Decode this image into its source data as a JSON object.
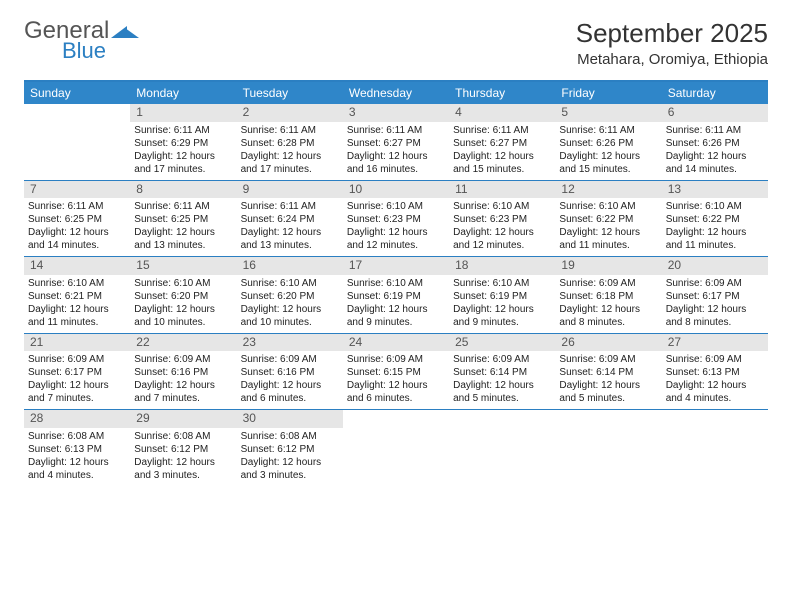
{
  "logo": {
    "general": "General",
    "blue": "Blue"
  },
  "title": "September 2025",
  "subtitle": "Metahara, Oromiya, Ethiopia",
  "colors": {
    "header_bg": "#2f86c9",
    "rule": "#2b7fc2",
    "daynum_bg": "#e6e6e6",
    "text": "#333333"
  },
  "day_headers": [
    "Sunday",
    "Monday",
    "Tuesday",
    "Wednesday",
    "Thursday",
    "Friday",
    "Saturday"
  ],
  "weeks": [
    [
      {
        "n": "",
        "sr": "",
        "ss": "",
        "dl": ""
      },
      {
        "n": "1",
        "sr": "Sunrise: 6:11 AM",
        "ss": "Sunset: 6:29 PM",
        "dl": "Daylight: 12 hours and 17 minutes."
      },
      {
        "n": "2",
        "sr": "Sunrise: 6:11 AM",
        "ss": "Sunset: 6:28 PM",
        "dl": "Daylight: 12 hours and 17 minutes."
      },
      {
        "n": "3",
        "sr": "Sunrise: 6:11 AM",
        "ss": "Sunset: 6:27 PM",
        "dl": "Daylight: 12 hours and 16 minutes."
      },
      {
        "n": "4",
        "sr": "Sunrise: 6:11 AM",
        "ss": "Sunset: 6:27 PM",
        "dl": "Daylight: 12 hours and 15 minutes."
      },
      {
        "n": "5",
        "sr": "Sunrise: 6:11 AM",
        "ss": "Sunset: 6:26 PM",
        "dl": "Daylight: 12 hours and 15 minutes."
      },
      {
        "n": "6",
        "sr": "Sunrise: 6:11 AM",
        "ss": "Sunset: 6:26 PM",
        "dl": "Daylight: 12 hours and 14 minutes."
      }
    ],
    [
      {
        "n": "7",
        "sr": "Sunrise: 6:11 AM",
        "ss": "Sunset: 6:25 PM",
        "dl": "Daylight: 12 hours and 14 minutes."
      },
      {
        "n": "8",
        "sr": "Sunrise: 6:11 AM",
        "ss": "Sunset: 6:25 PM",
        "dl": "Daylight: 12 hours and 13 minutes."
      },
      {
        "n": "9",
        "sr": "Sunrise: 6:11 AM",
        "ss": "Sunset: 6:24 PM",
        "dl": "Daylight: 12 hours and 13 minutes."
      },
      {
        "n": "10",
        "sr": "Sunrise: 6:10 AM",
        "ss": "Sunset: 6:23 PM",
        "dl": "Daylight: 12 hours and 12 minutes."
      },
      {
        "n": "11",
        "sr": "Sunrise: 6:10 AM",
        "ss": "Sunset: 6:23 PM",
        "dl": "Daylight: 12 hours and 12 minutes."
      },
      {
        "n": "12",
        "sr": "Sunrise: 6:10 AM",
        "ss": "Sunset: 6:22 PM",
        "dl": "Daylight: 12 hours and 11 minutes."
      },
      {
        "n": "13",
        "sr": "Sunrise: 6:10 AM",
        "ss": "Sunset: 6:22 PM",
        "dl": "Daylight: 12 hours and 11 minutes."
      }
    ],
    [
      {
        "n": "14",
        "sr": "Sunrise: 6:10 AM",
        "ss": "Sunset: 6:21 PM",
        "dl": "Daylight: 12 hours and 11 minutes."
      },
      {
        "n": "15",
        "sr": "Sunrise: 6:10 AM",
        "ss": "Sunset: 6:20 PM",
        "dl": "Daylight: 12 hours and 10 minutes."
      },
      {
        "n": "16",
        "sr": "Sunrise: 6:10 AM",
        "ss": "Sunset: 6:20 PM",
        "dl": "Daylight: 12 hours and 10 minutes."
      },
      {
        "n": "17",
        "sr": "Sunrise: 6:10 AM",
        "ss": "Sunset: 6:19 PM",
        "dl": "Daylight: 12 hours and 9 minutes."
      },
      {
        "n": "18",
        "sr": "Sunrise: 6:10 AM",
        "ss": "Sunset: 6:19 PM",
        "dl": "Daylight: 12 hours and 9 minutes."
      },
      {
        "n": "19",
        "sr": "Sunrise: 6:09 AM",
        "ss": "Sunset: 6:18 PM",
        "dl": "Daylight: 12 hours and 8 minutes."
      },
      {
        "n": "20",
        "sr": "Sunrise: 6:09 AM",
        "ss": "Sunset: 6:17 PM",
        "dl": "Daylight: 12 hours and 8 minutes."
      }
    ],
    [
      {
        "n": "21",
        "sr": "Sunrise: 6:09 AM",
        "ss": "Sunset: 6:17 PM",
        "dl": "Daylight: 12 hours and 7 minutes."
      },
      {
        "n": "22",
        "sr": "Sunrise: 6:09 AM",
        "ss": "Sunset: 6:16 PM",
        "dl": "Daylight: 12 hours and 7 minutes."
      },
      {
        "n": "23",
        "sr": "Sunrise: 6:09 AM",
        "ss": "Sunset: 6:16 PM",
        "dl": "Daylight: 12 hours and 6 minutes."
      },
      {
        "n": "24",
        "sr": "Sunrise: 6:09 AM",
        "ss": "Sunset: 6:15 PM",
        "dl": "Daylight: 12 hours and 6 minutes."
      },
      {
        "n": "25",
        "sr": "Sunrise: 6:09 AM",
        "ss": "Sunset: 6:14 PM",
        "dl": "Daylight: 12 hours and 5 minutes."
      },
      {
        "n": "26",
        "sr": "Sunrise: 6:09 AM",
        "ss": "Sunset: 6:14 PM",
        "dl": "Daylight: 12 hours and 5 minutes."
      },
      {
        "n": "27",
        "sr": "Sunrise: 6:09 AM",
        "ss": "Sunset: 6:13 PM",
        "dl": "Daylight: 12 hours and 4 minutes."
      }
    ],
    [
      {
        "n": "28",
        "sr": "Sunrise: 6:08 AM",
        "ss": "Sunset: 6:13 PM",
        "dl": "Daylight: 12 hours and 4 minutes."
      },
      {
        "n": "29",
        "sr": "Sunrise: 6:08 AM",
        "ss": "Sunset: 6:12 PM",
        "dl": "Daylight: 12 hours and 3 minutes."
      },
      {
        "n": "30",
        "sr": "Sunrise: 6:08 AM",
        "ss": "Sunset: 6:12 PM",
        "dl": "Daylight: 12 hours and 3 minutes."
      },
      {
        "n": "",
        "sr": "",
        "ss": "",
        "dl": ""
      },
      {
        "n": "",
        "sr": "",
        "ss": "",
        "dl": ""
      },
      {
        "n": "",
        "sr": "",
        "ss": "",
        "dl": ""
      },
      {
        "n": "",
        "sr": "",
        "ss": "",
        "dl": ""
      }
    ]
  ]
}
